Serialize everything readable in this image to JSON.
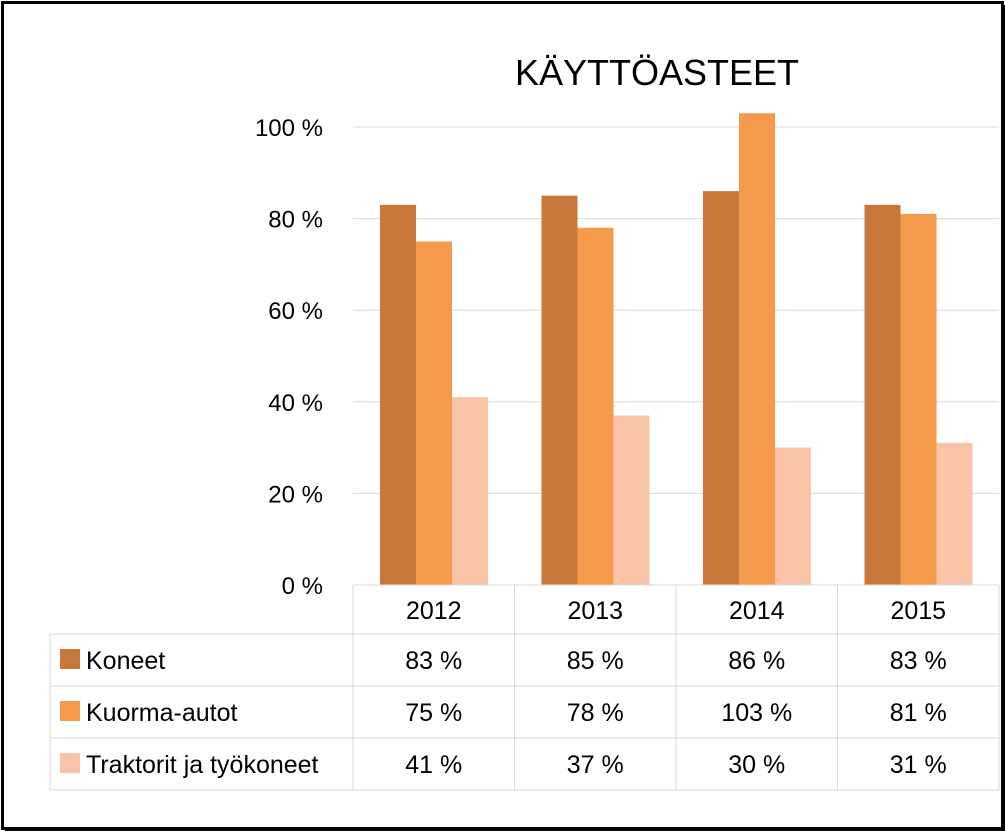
{
  "chart_data": {
    "type": "bar",
    "title": "KÄYTTÖASTEET",
    "categories": [
      "2012",
      "2013",
      "2014",
      "2015"
    ],
    "series": [
      {
        "name": "Koneet",
        "values": [
          83,
          85,
          86,
          83
        ],
        "labels": [
          "83 %",
          "85 %",
          "86 %",
          "83 %"
        ],
        "color": "#C8773A"
      },
      {
        "name": "Kuorma-autot",
        "values": [
          75,
          78,
          103,
          81
        ],
        "labels": [
          "75 %",
          "78 %",
          "103 %",
          "81 %"
        ],
        "color": "#F59A4B"
      },
      {
        "name": "Traktorit ja työkoneet",
        "values": [
          41,
          37,
          30,
          31
        ],
        "labels": [
          "41 %",
          "37 %",
          "30 %",
          "31 %"
        ],
        "color": "#F8C3A6"
      }
    ],
    "yticks": [
      0,
      20,
      40,
      60,
      80,
      100
    ],
    "ytick_labels": [
      "0 %",
      "20 %",
      "40 %",
      "60 %",
      "80 %",
      "100 %"
    ],
    "ylim": [
      0,
      100
    ],
    "grid": true,
    "legend": "data-table"
  }
}
